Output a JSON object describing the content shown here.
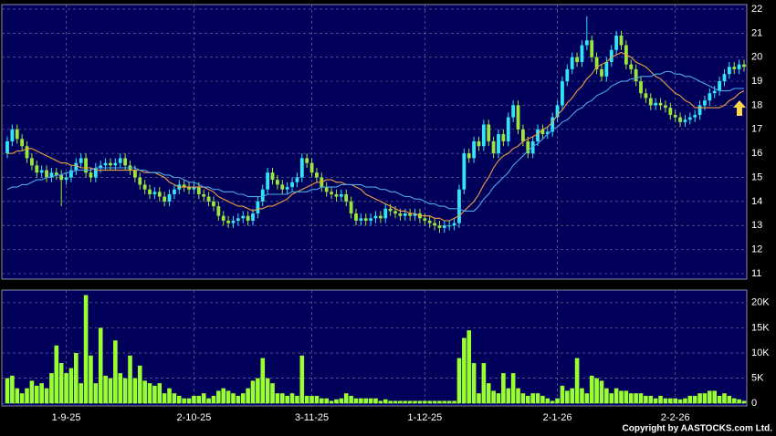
{
  "chart_data": {
    "type": "candlestick",
    "categories": [
      null,
      null,
      null,
      null,
      null,
      null,
      null,
      null,
      null,
      null,
      null,
      null,
      "1-9-25",
      null,
      null,
      null,
      null,
      null,
      null,
      null,
      null,
      null,
      null,
      null,
      null,
      null,
      null,
      null,
      null,
      null,
      null,
      null,
      null,
      null,
      null,
      null,
      null,
      null,
      "2-10-25",
      null,
      null,
      null,
      null,
      null,
      null,
      null,
      null,
      null,
      null,
      null,
      null,
      null,
      null,
      null,
      null,
      null,
      null,
      null,
      null,
      null,
      null,
      null,
      "3-11-25",
      null,
      null,
      null,
      null,
      null,
      null,
      null,
      null,
      null,
      null,
      null,
      null,
      null,
      null,
      null,
      null,
      null,
      null,
      null,
      null,
      null,
      null,
      "1-12-25",
      null,
      null,
      null,
      null,
      null,
      null,
      null,
      null,
      null,
      null,
      null,
      null,
      null,
      null,
      null,
      null,
      null,
      null,
      null,
      null,
      null,
      null,
      null,
      null,
      null,
      null,
      "2-1-26",
      null,
      null,
      null,
      null,
      null,
      null,
      null,
      null,
      null,
      null,
      null,
      null,
      null,
      null,
      null,
      null,
      null,
      null,
      null,
      null,
      null,
      null,
      null,
      "2-2-26",
      null,
      null,
      null,
      null,
      null,
      null,
      null,
      null,
      null,
      null,
      null,
      null,
      null,
      null
    ],
    "open": [
      16.0,
      16.5,
      17.0,
      16.6,
      16.3,
      15.8,
      15.5,
      15.2,
      15.3,
      15.0,
      15.2,
      15.1,
      14.9,
      15.0,
      15.3,
      15.6,
      15.8,
      15.2,
      15.0,
      15.4,
      15.5,
      15.6,
      15.5,
      15.6,
      15.8,
      15.5,
      15.3,
      15.0,
      14.7,
      14.5,
      14.3,
      14.4,
      14.2,
      14.0,
      14.3,
      14.5,
      14.7,
      14.6,
      14.5,
      14.6,
      14.3,
      14.2,
      14.0,
      13.8,
      13.4,
      13.2,
      13.1,
      13.2,
      13.3,
      13.4,
      13.2,
      13.5,
      14.0,
      14.5,
      15.2,
      14.9,
      14.7,
      14.5,
      14.6,
      14.8,
      15.0,
      15.8,
      15.6,
      15.2,
      15.0,
      14.6,
      14.4,
      14.3,
      14.2,
      14.3,
      14.0,
      13.5,
      13.2,
      13.3,
      13.2,
      13.3,
      13.4,
      13.3,
      13.7,
      13.6,
      13.5,
      13.4,
      13.5,
      13.4,
      13.5,
      13.3,
      13.2,
      13.1,
      13.0,
      12.9,
      13.0,
      13.0,
      13.1,
      14.5,
      16.0,
      15.8,
      16.5,
      16.3,
      17.2,
      16.5,
      16.0,
      16.8,
      16.5,
      17.5,
      18.0,
      17.0,
      16.5,
      16.0,
      16.5,
      17.0,
      16.8,
      16.9,
      17.5,
      18.0,
      19.0,
      19.5,
      20.0,
      19.8,
      20.5,
      20.7,
      20.0,
      19.5,
      19.2,
      19.8,
      20.3,
      20.9,
      20.5,
      19.7,
      19.5,
      19.0,
      18.5,
      18.3,
      18.0,
      18.1,
      18.0,
      17.9,
      17.6,
      17.5,
      17.3,
      17.4,
      17.5,
      17.6,
      18.0,
      18.2,
      18.5,
      18.6,
      19.0,
      19.3,
      19.6,
      19.5,
      19.7
    ],
    "high": [
      16.7,
      17.2,
      17.2,
      16.8,
      16.5,
      16.0,
      15.7,
      15.5,
      15.5,
      15.4,
      15.4,
      15.3,
      15.2,
      15.5,
      15.8,
      16.0,
      16.0,
      15.4,
      15.6,
      15.7,
      15.8,
      15.8,
      15.8,
      16.0,
      16.0,
      15.7,
      15.5,
      15.2,
      14.9,
      14.7,
      14.6,
      14.6,
      14.4,
      14.5,
      14.7,
      14.9,
      14.9,
      14.8,
      14.8,
      14.8,
      14.5,
      14.4,
      14.2,
      14.0,
      13.6,
      13.4,
      13.4,
      13.5,
      13.6,
      13.6,
      13.7,
      14.2,
      14.7,
      15.4,
      15.4,
      15.1,
      14.9,
      14.8,
      15.0,
      15.2,
      16.0,
      16.0,
      15.8,
      15.4,
      15.2,
      14.8,
      14.6,
      14.5,
      14.5,
      14.5,
      14.2,
      13.7,
      13.5,
      13.5,
      13.5,
      13.6,
      13.6,
      13.9,
      13.9,
      13.8,
      13.7,
      13.7,
      13.7,
      13.7,
      13.7,
      13.5,
      13.4,
      13.3,
      13.2,
      13.2,
      13.2,
      13.3,
      14.7,
      16.2,
      16.2,
      16.7,
      16.7,
      17.4,
      17.4,
      16.7,
      17.0,
      17.0,
      17.7,
      18.2,
      18.2,
      17.2,
      16.7,
      16.7,
      17.2,
      17.2,
      17.1,
      17.7,
      18.2,
      19.2,
      19.7,
      20.2,
      20.2,
      20.7,
      21.7,
      20.9,
      20.2,
      19.7,
      20.0,
      20.5,
      21.1,
      21.1,
      20.7,
      19.9,
      19.7,
      19.2,
      18.7,
      18.5,
      18.3,
      18.3,
      18.2,
      18.1,
      17.8,
      17.7,
      17.6,
      17.7,
      17.8,
      18.2,
      18.4,
      18.7,
      18.8,
      19.2,
      19.5,
      19.8,
      19.8,
      19.9,
      19.9
    ],
    "low": [
      15.8,
      16.3,
      16.4,
      16.1,
      15.6,
      15.3,
      15.0,
      15.0,
      14.8,
      14.8,
      14.9,
      13.8,
      14.7,
      14.8,
      15.1,
      15.4,
      15.0,
      14.8,
      14.8,
      15.2,
      15.3,
      15.3,
      15.3,
      15.4,
      15.3,
      15.1,
      14.8,
      14.5,
      14.3,
      14.1,
      14.1,
      14.0,
      13.8,
      13.8,
      14.1,
      14.3,
      14.4,
      14.3,
      14.3,
      14.1,
      14.0,
      13.8,
      13.6,
      13.2,
      13.0,
      12.9,
      12.9,
      13.0,
      13.1,
      13.0,
      13.0,
      13.3,
      13.8,
      14.3,
      14.7,
      14.5,
      14.3,
      14.3,
      14.4,
      14.6,
      14.8,
      15.4,
      15.0,
      14.8,
      14.4,
      14.2,
      14.1,
      14.0,
      14.0,
      13.8,
      13.3,
      13.0,
      13.0,
      13.0,
      13.0,
      13.1,
      13.1,
      13.1,
      13.4,
      13.3,
      13.2,
      13.2,
      13.2,
      13.2,
      13.1,
      13.0,
      12.9,
      12.8,
      12.7,
      12.7,
      12.8,
      12.8,
      12.9,
      14.3,
      15.6,
      15.6,
      16.1,
      16.1,
      16.3,
      15.8,
      15.8,
      16.3,
      16.3,
      17.3,
      16.8,
      16.3,
      15.8,
      15.8,
      16.3,
      16.6,
      16.6,
      16.7,
      17.3,
      17.8,
      18.8,
      19.3,
      19.6,
      19.6,
      20.3,
      19.8,
      19.3,
      19.0,
      19.0,
      19.6,
      20.1,
      20.3,
      19.5,
      19.3,
      18.8,
      18.3,
      18.1,
      17.8,
      17.8,
      17.8,
      17.7,
      17.4,
      17.3,
      17.1,
      17.1,
      17.2,
      17.3,
      17.4,
      17.8,
      18.0,
      18.3,
      18.4,
      18.8,
      19.1,
      19.3,
      19.3,
      19.4
    ],
    "close": [
      16.5,
      17.0,
      16.6,
      16.3,
      15.8,
      15.5,
      15.2,
      15.3,
      15.0,
      15.2,
      15.1,
      14.9,
      15.0,
      15.3,
      15.6,
      15.8,
      15.2,
      15.0,
      15.4,
      15.5,
      15.6,
      15.5,
      15.6,
      15.8,
      15.5,
      15.3,
      15.0,
      14.7,
      14.5,
      14.3,
      14.4,
      14.2,
      14.0,
      14.3,
      14.5,
      14.7,
      14.6,
      14.5,
      14.6,
      14.3,
      14.2,
      14.0,
      13.8,
      13.4,
      13.2,
      13.1,
      13.2,
      13.3,
      13.4,
      13.2,
      13.5,
      14.0,
      14.5,
      15.2,
      14.9,
      14.7,
      14.5,
      14.6,
      14.8,
      15.0,
      15.8,
      15.6,
      15.2,
      15.0,
      14.6,
      14.4,
      14.3,
      14.2,
      14.3,
      14.0,
      13.5,
      13.2,
      13.3,
      13.2,
      13.3,
      13.4,
      13.3,
      13.7,
      13.6,
      13.5,
      13.4,
      13.5,
      13.4,
      13.5,
      13.3,
      13.2,
      13.1,
      13.0,
      12.9,
      13.0,
      13.0,
      13.1,
      14.5,
      16.0,
      15.8,
      16.5,
      16.3,
      17.2,
      16.5,
      16.0,
      16.8,
      16.5,
      17.5,
      18.0,
      17.0,
      16.5,
      16.0,
      16.5,
      17.0,
      16.8,
      16.9,
      17.5,
      18.0,
      19.0,
      19.5,
      20.0,
      19.8,
      20.5,
      20.7,
      20.0,
      19.5,
      19.2,
      19.8,
      20.3,
      20.9,
      20.5,
      19.7,
      19.5,
      19.0,
      18.5,
      18.3,
      18.0,
      18.1,
      18.0,
      17.9,
      17.6,
      17.5,
      17.3,
      17.4,
      17.5,
      17.6,
      18.0,
      18.2,
      18.5,
      18.6,
      19.0,
      19.3,
      19.6,
      19.5,
      19.7,
      19.6
    ],
    "up_color": "#33e4f4",
    "down_color": "#9be63a",
    "lines": [
      {
        "color": "#f0a040",
        "values": [
          16.0,
          16.0,
          16.1,
          16.1,
          16.2,
          16.2,
          16.1,
          16.0,
          15.9,
          15.8,
          15.7,
          15.6,
          15.6,
          15.5,
          15.5,
          15.4,
          15.4,
          15.4,
          15.3,
          15.3,
          15.3,
          15.3,
          15.3,
          15.3,
          15.3,
          15.3,
          15.3,
          15.3,
          15.2,
          15.2,
          15.2,
          15.1,
          15.0,
          14.8,
          14.7,
          14.6,
          14.6,
          14.6,
          14.6,
          14.6,
          14.6,
          14.5,
          14.4,
          14.2,
          14.1,
          14.0,
          13.9,
          13.8,
          13.8,
          13.7,
          13.6,
          13.7,
          13.7,
          13.8,
          13.8,
          13.9,
          14.0,
          14.1,
          14.3,
          14.4,
          14.5,
          14.6,
          14.7,
          14.8,
          14.8,
          14.9,
          14.9,
          14.8,
          14.8,
          14.7,
          14.7,
          14.6,
          14.5,
          14.3,
          14.2,
          14.1,
          14.0,
          13.9,
          13.8,
          13.7,
          13.6,
          13.6,
          13.5,
          13.5,
          13.4,
          13.4,
          13.4,
          13.3,
          13.3,
          13.2,
          13.2,
          13.3,
          13.4,
          13.6,
          13.8,
          14.0,
          14.3,
          14.7,
          15.0,
          15.4,
          15.7,
          15.9,
          16.0,
          16.2,
          16.3,
          16.5,
          16.6,
          16.7,
          16.8,
          17.0,
          17.1,
          17.3,
          17.6,
          17.8,
          18.1,
          18.3,
          18.6,
          18.8,
          19.1,
          19.3,
          19.6,
          19.7,
          19.8,
          20.0,
          20.1,
          20.2,
          20.1,
          20.0,
          19.8,
          19.7,
          19.6,
          19.4,
          19.2,
          19.1,
          18.9,
          18.7,
          18.5,
          18.4,
          18.2,
          18.1,
          17.9,
          17.9,
          17.9,
          17.9,
          17.9,
          17.9,
          18.0,
          18.2,
          18.3,
          18.5,
          18.6
        ]
      },
      {
        "color": "#4aa8e8",
        "values": [
          14.5,
          14.6,
          14.6,
          14.7,
          14.7,
          14.8,
          14.9,
          14.9,
          15.0,
          15.0,
          15.1,
          15.1,
          15.2,
          15.2,
          15.3,
          15.3,
          15.3,
          15.3,
          15.4,
          15.4,
          15.4,
          15.4,
          15.4,
          15.4,
          15.4,
          15.4,
          15.4,
          15.3,
          15.3,
          15.2,
          15.2,
          15.2,
          15.1,
          15.1,
          15.0,
          15.0,
          14.9,
          14.8,
          14.8,
          14.7,
          14.6,
          14.6,
          14.5,
          14.5,
          14.4,
          14.4,
          14.4,
          14.3,
          14.3,
          14.2,
          14.2,
          14.2,
          14.2,
          14.3,
          14.3,
          14.3,
          14.3,
          14.3,
          14.4,
          14.4,
          14.4,
          14.4,
          14.5,
          14.5,
          14.6,
          14.6,
          14.6,
          14.6,
          14.7,
          14.7,
          14.7,
          14.7,
          14.7,
          14.6,
          14.6,
          14.6,
          14.5,
          14.5,
          14.4,
          14.4,
          14.3,
          14.2,
          14.2,
          14.1,
          14.1,
          14.0,
          13.9,
          13.9,
          13.8,
          13.8,
          13.7,
          13.7,
          13.7,
          13.6,
          13.6,
          13.6,
          13.8,
          14.1,
          14.3,
          14.6,
          14.8,
          15.0,
          15.2,
          15.5,
          15.7,
          15.9,
          16.1,
          16.3,
          16.4,
          16.6,
          16.8,
          17.0,
          17.1,
          17.3,
          17.4,
          17.6,
          17.8,
          17.9,
          18.1,
          18.2,
          18.4,
          18.5,
          18.6,
          18.8,
          18.9,
          19.0,
          19.0,
          19.1,
          19.1,
          19.2,
          19.2,
          19.2,
          19.3,
          19.3,
          19.4,
          19.4,
          19.3,
          19.3,
          19.2,
          19.2,
          19.1,
          19.0,
          18.9,
          18.8,
          18.7,
          18.6,
          18.6,
          18.6,
          18.7,
          18.7,
          18.7
        ]
      }
    ],
    "ylim": [
      10.77,
      22.19
    ],
    "yticks": [
      11,
      12,
      13,
      14,
      15,
      16,
      17,
      18,
      19,
      20,
      21,
      22
    ],
    "grid": true,
    "volume": {
      "color": "#99ff33",
      "values": [
        5000,
        5500,
        3000,
        2000,
        3000,
        4500,
        3500,
        4000,
        3000,
        6000,
        11500,
        8000,
        6000,
        7000,
        10000,
        4000,
        21500,
        9500,
        4000,
        15000,
        5500,
        5000,
        12500,
        6000,
        5000,
        9500,
        5000,
        7500,
        4500,
        4000,
        3500,
        4000,
        2000,
        3000,
        2000,
        1500,
        1000,
        1000,
        1500,
        1500,
        2000,
        1000,
        1500,
        2500,
        3000,
        2500,
        2000,
        1500,
        2000,
        3000,
        4500,
        5000,
        9000,
        5000,
        4000,
        2000,
        2000,
        1500,
        2000,
        1500,
        9500,
        1500,
        1500,
        1500,
        1000,
        1000,
        500,
        800,
        1000,
        2000,
        1500,
        1000,
        1000,
        1000,
        1000,
        1000,
        500,
        800,
        500,
        500,
        500,
        500,
        500,
        500,
        500,
        500,
        500,
        500,
        500,
        500,
        500,
        500,
        9000,
        13000,
        14500,
        8000,
        2000,
        8000,
        4000,
        2500,
        2000,
        6000,
        3000,
        6000,
        3000,
        2000,
        1500,
        2000,
        2000,
        1500,
        1000,
        500,
        1000,
        3500,
        2500,
        3000,
        9000,
        3000,
        2000,
        5500,
        5000,
        4500,
        3000,
        2000,
        3000,
        2500,
        2500,
        2000,
        2000,
        2000,
        1500,
        1500,
        1000,
        1500,
        1000,
        1000,
        1000,
        800,
        1000,
        1500,
        1500,
        2000,
        2000,
        2500,
        2500,
        1500,
        2000,
        1500,
        1000,
        800,
        500
      ],
      "ylim": [
        -500,
        22500
      ],
      "yticks": [
        0,
        {
          "value": 5000,
          "label": "5K"
        },
        {
          "value": 10000,
          "label": "10K"
        },
        {
          "value": 15000,
          "label": "15K"
        },
        {
          "value": 20000,
          "label": "20K"
        }
      ]
    },
    "credit": "Copyright by AASTOCKS.com Ltd."
  }
}
